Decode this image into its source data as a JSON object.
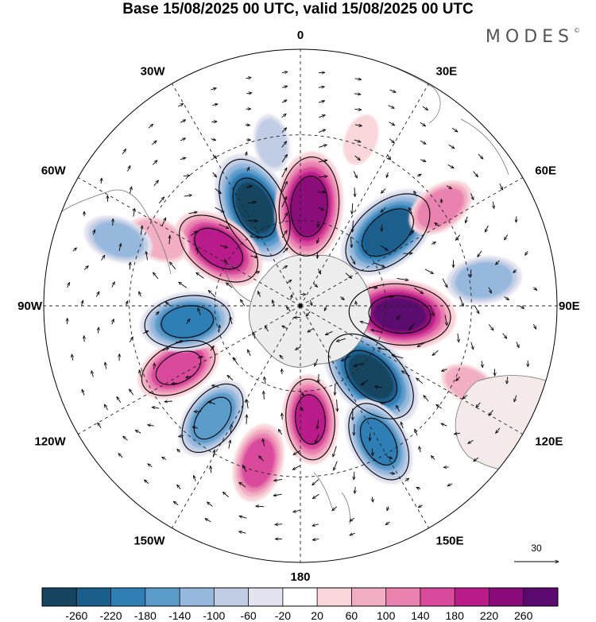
{
  "title": "Base 15/08/2025 00 UTC, valid 15/08/2025 00 UTC",
  "brand": "MODES",
  "brand_mark": "©",
  "meridians": [
    {
      "label": "0",
      "lon": 0
    },
    {
      "label": "30E",
      "lon": 30
    },
    {
      "label": "60E",
      "lon": 60
    },
    {
      "label": "90E",
      "lon": 90
    },
    {
      "label": "120E",
      "lon": 120
    },
    {
      "label": "150E",
      "lon": 150
    },
    {
      "label": "180",
      "lon": 180
    },
    {
      "label": "150W",
      "lon": 210
    },
    {
      "label": "120W",
      "lon": 240
    },
    {
      "label": "90W",
      "lon": 270
    },
    {
      "label": "60W",
      "lon": 300
    },
    {
      "label": "30W",
      "lon": 330
    }
  ],
  "reference_vector": {
    "label": "30"
  },
  "colorbar": {
    "labels": [
      "-260",
      "-220",
      "-180",
      "-140",
      "-100",
      "-60",
      "-20",
      "20",
      "60",
      "100",
      "140",
      "180",
      "220",
      "260"
    ],
    "colors": [
      "#14445f",
      "#1a5f8c",
      "#2f7fb5",
      "#5b9ccb",
      "#95b8dc",
      "#c0cde5",
      "#e3e3ef",
      "#ffffff",
      "#f8d6da",
      "#f2aec3",
      "#ea82b0",
      "#d94a9c",
      "#b91b8a",
      "#8a0a7a",
      "#5a0a6e"
    ]
  },
  "anomalies": [
    {
      "name": "low-south-atlantic",
      "lon": 335,
      "lat": -52,
      "value": -270
    },
    {
      "name": "high-weddell",
      "lon": 5,
      "lat": -55,
      "value": 255
    },
    {
      "name": "low-indian-west",
      "lon": 50,
      "lat": -50,
      "value": -250
    },
    {
      "name": "high-kerguelen",
      "lon": 95,
      "lat": -55,
      "value": 265
    },
    {
      "name": "low-south-australia",
      "lon": 135,
      "lat": -55,
      "value": -270
    },
    {
      "name": "high-ross",
      "lon": 175,
      "lat": -50,
      "value": 180
    },
    {
      "name": "low-southwest-pacific",
      "lon": 150,
      "lat": -35,
      "value": -190
    },
    {
      "name": "high-pacific-south",
      "lon": 195,
      "lat": -33,
      "value": 140
    },
    {
      "name": "low-pacific-east",
      "lon": 218,
      "lat": -40,
      "value": -170
    },
    {
      "name": "high-pacific-central",
      "lon": 243,
      "lat": -42,
      "value": 170
    },
    {
      "name": "low-amundsen",
      "lon": 262,
      "lat": -50,
      "value": -200
    },
    {
      "name": "high-drake",
      "lon": 305,
      "lat": -55,
      "value": 210
    },
    {
      "name": "high-south-america",
      "lon": 295,
      "lat": -35,
      "value": 90
    },
    {
      "name": "low-southeast-pacific",
      "lon": 290,
      "lat": -22,
      "value": -110
    },
    {
      "name": "high-south-africa",
      "lon": 55,
      "lat": -30,
      "value": 110
    },
    {
      "name": "low-indian-east",
      "lon": 82,
      "lat": -25,
      "value": -130
    },
    {
      "name": "high-australia",
      "lon": 115,
      "lat": -25,
      "value": 60
    },
    {
      "name": "high-atlantic-north",
      "lon": 20,
      "lat": -28,
      "value": 40
    },
    {
      "name": "low-atlantic-central",
      "lon": 350,
      "lat": -32,
      "value": -60
    }
  ]
}
